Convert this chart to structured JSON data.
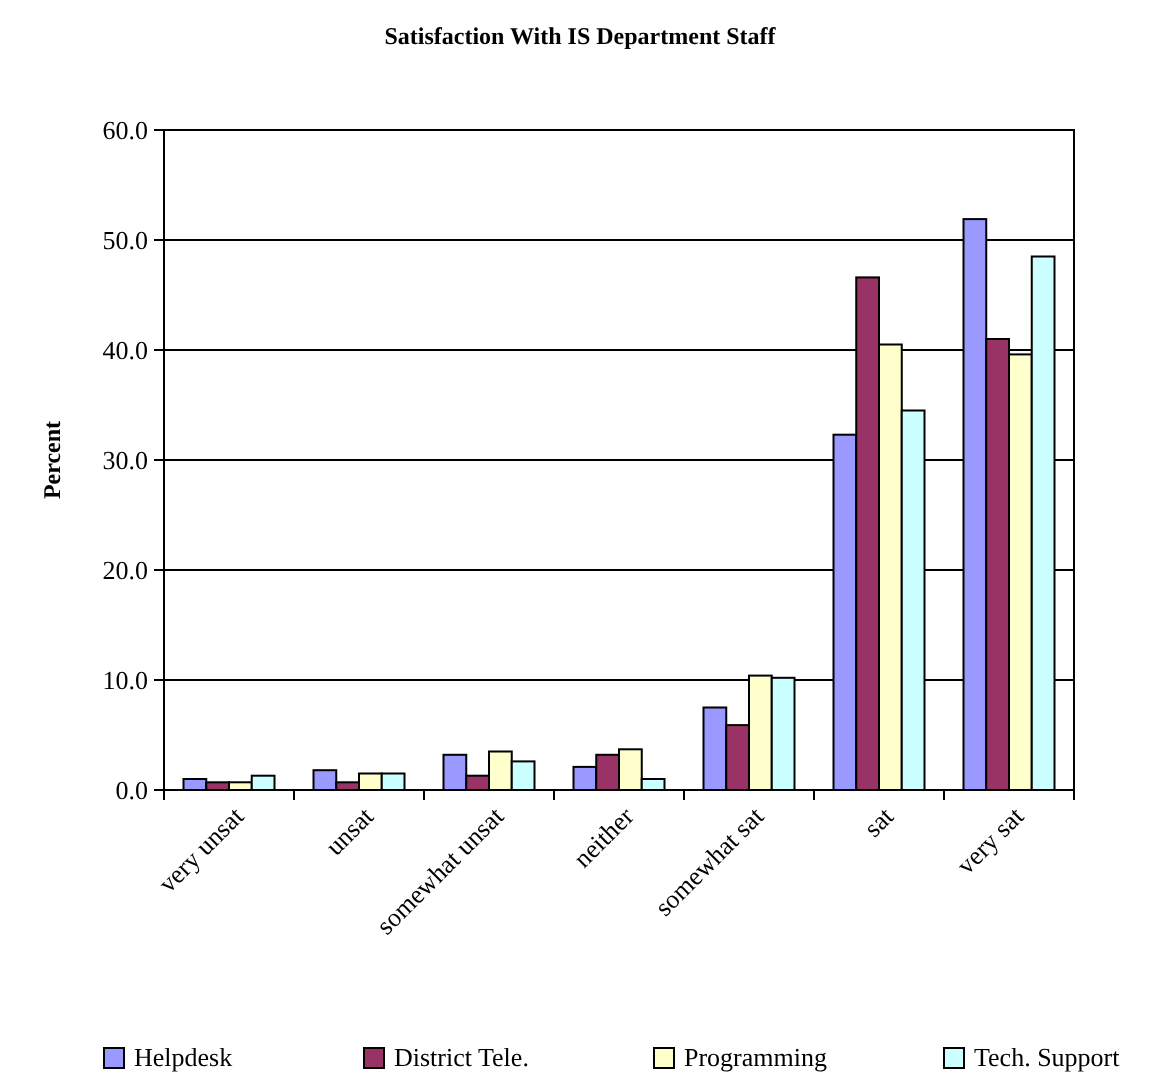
{
  "chart_data": {
    "type": "bar",
    "title": "Satisfaction With IS Department Staff",
    "ylabel": "Percent",
    "categories": [
      "very unsat",
      "unsat",
      "somewhat unsat",
      "neither",
      "somewhat sat",
      "sat",
      "very sat"
    ],
    "series": [
      {
        "name": "Helpdesk",
        "color": "#9999ff",
        "values": [
          1.0,
          1.8,
          3.2,
          2.1,
          7.5,
          32.3,
          51.9
        ]
      },
      {
        "name": "District Tele.",
        "color": "#993366",
        "values": [
          0.7,
          0.7,
          1.3,
          3.2,
          5.9,
          46.6,
          41.0
        ]
      },
      {
        "name": "Programming",
        "color": "#ffffcc",
        "values": [
          0.7,
          1.5,
          3.5,
          3.7,
          10.4,
          40.5,
          39.6
        ]
      },
      {
        "name": "Tech. Support",
        "color": "#ccffff",
        "values": [
          1.3,
          1.5,
          2.6,
          1.0,
          10.2,
          34.5,
          48.5
        ]
      }
    ],
    "ylim": [
      0,
      60
    ],
    "yticks": [
      {
        "value": 0,
        "label": "0.0"
      },
      {
        "value": 10,
        "label": "10.0"
      },
      {
        "value": 20,
        "label": "20.0"
      },
      {
        "value": 30,
        "label": "30.0"
      },
      {
        "value": 40,
        "label": "40.0"
      },
      {
        "value": 50,
        "label": "50.0"
      },
      {
        "value": 60,
        "label": "60.0"
      }
    ],
    "grid": "y",
    "legend": "bottom"
  }
}
